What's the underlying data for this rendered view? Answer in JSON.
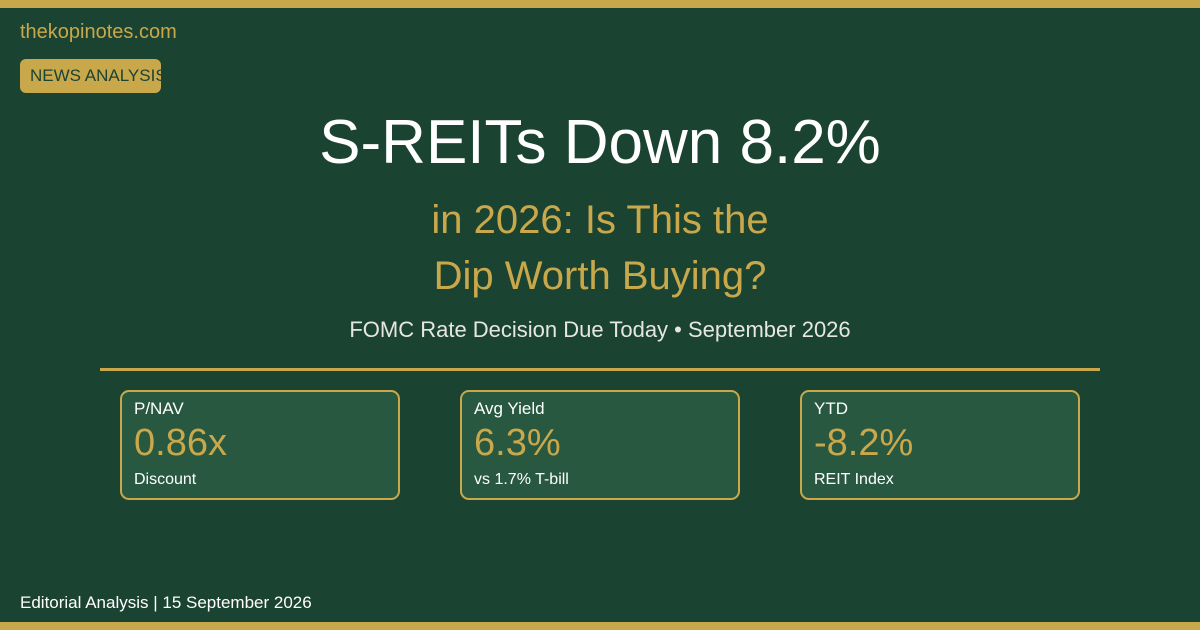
{
  "colors": {
    "background": "#1b4332",
    "accent": "#c9a84c",
    "card_background": "#285940",
    "text": "#ffffff"
  },
  "site": "thekopinotes.com",
  "badge": "NEWS ANALYSIS",
  "headline": "S-REITs Down 8.2%",
  "subhead": {
    "line1": "in 2026: Is This the",
    "line2": "Dip Worth Buying?"
  },
  "dateline": "FOMC Rate Decision Due Today • September 2026",
  "stats": [
    {
      "label": "P/NAV",
      "value": "0.86x",
      "note": "Discount"
    },
    {
      "label": "Avg Yield",
      "value": "6.3%",
      "note": "vs 1.7% T-bill"
    },
    {
      "label": "YTD",
      "value": "-8.2%",
      "note": "REIT Index"
    }
  ],
  "footer": "Editorial Analysis | 15 September 2026"
}
